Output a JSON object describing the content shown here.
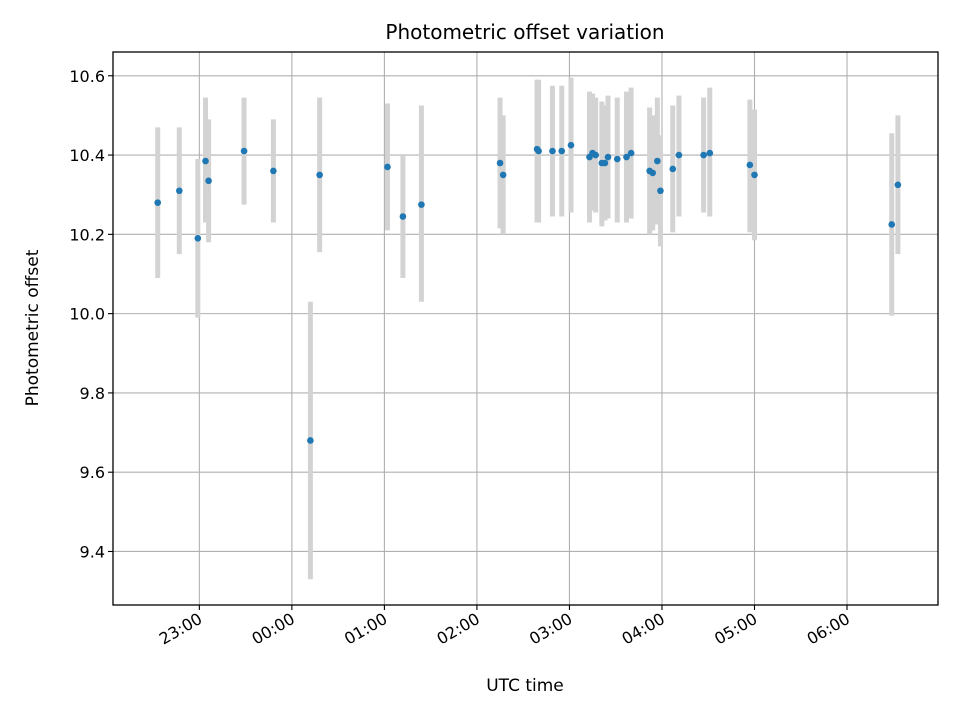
{
  "chart_data": {
    "type": "scatter",
    "title": "Photometric offset variation",
    "xlabel": "UTC time",
    "ylabel": "Photometric offset",
    "grid": true,
    "legend": "none",
    "x_axis_kind": "time",
    "x_range": [
      "22:04",
      "06:59"
    ],
    "ylim": [
      9.265,
      10.66
    ],
    "x_ticks": [
      "23:00",
      "00:00",
      "01:00",
      "02:00",
      "03:00",
      "04:00",
      "05:00",
      "06:00"
    ],
    "y_ticks": [
      9.4,
      9.6,
      9.8,
      10.0,
      10.2,
      10.4,
      10.6
    ],
    "y_tick_labels": [
      "9.4",
      "9.6",
      "9.8",
      "10.0",
      "10.2",
      "10.4",
      "10.6"
    ],
    "point_color": "#1f77b4",
    "errorbar_color": "#d3d3d3",
    "points": [
      {
        "t": "22:33",
        "y": 10.28,
        "lo": 10.09,
        "hi": 10.47
      },
      {
        "t": "22:47",
        "y": 10.31,
        "lo": 10.15,
        "hi": 10.47
      },
      {
        "t": "22:59",
        "y": 10.19,
        "lo": 9.99,
        "hi": 10.39
      },
      {
        "t": "23:04",
        "y": 10.385,
        "lo": 10.23,
        "hi": 10.545
      },
      {
        "t": "23:06",
        "y": 10.335,
        "lo": 10.18,
        "hi": 10.49
      },
      {
        "t": "23:29",
        "y": 10.41,
        "lo": 10.275,
        "hi": 10.545
      },
      {
        "t": "23:48",
        "y": 10.36,
        "lo": 10.23,
        "hi": 10.49
      },
      {
        "t": "00:12",
        "y": 9.68,
        "lo": 9.33,
        "hi": 10.03
      },
      {
        "t": "00:18",
        "y": 10.35,
        "lo": 10.155,
        "hi": 10.545
      },
      {
        "t": "01:02",
        "y": 10.37,
        "lo": 10.21,
        "hi": 10.53
      },
      {
        "t": "01:12",
        "y": 10.245,
        "lo": 10.09,
        "hi": 10.4
      },
      {
        "t": "01:24",
        "y": 10.275,
        "lo": 10.03,
        "hi": 10.525
      },
      {
        "t": "02:15",
        "y": 10.38,
        "lo": 10.215,
        "hi": 10.545
      },
      {
        "t": "02:17",
        "y": 10.35,
        "lo": 10.2,
        "hi": 10.5
      },
      {
        "t": "02:39",
        "y": 10.415,
        "lo": 10.23,
        "hi": 10.59
      },
      {
        "t": "02:40",
        "y": 10.41,
        "lo": 10.23,
        "hi": 10.59
      },
      {
        "t": "02:49",
        "y": 10.41,
        "lo": 10.245,
        "hi": 10.575
      },
      {
        "t": "02:55",
        "y": 10.41,
        "lo": 10.245,
        "hi": 10.575
      },
      {
        "t": "03:01",
        "y": 10.425,
        "lo": 10.255,
        "hi": 10.595
      },
      {
        "t": "03:13",
        "y": 10.395,
        "lo": 10.23,
        "hi": 10.56
      },
      {
        "t": "03:15",
        "y": 10.405,
        "lo": 10.26,
        "hi": 10.555
      },
      {
        "t": "03:17",
        "y": 10.4,
        "lo": 10.255,
        "hi": 10.545
      },
      {
        "t": "03:21",
        "y": 10.38,
        "lo": 10.22,
        "hi": 10.535
      },
      {
        "t": "03:23",
        "y": 10.38,
        "lo": 10.235,
        "hi": 10.525
      },
      {
        "t": "03:25",
        "y": 10.395,
        "lo": 10.24,
        "hi": 10.55
      },
      {
        "t": "03:31",
        "y": 10.39,
        "lo": 10.23,
        "hi": 10.545
      },
      {
        "t": "03:37",
        "y": 10.395,
        "lo": 10.23,
        "hi": 10.56
      },
      {
        "t": "03:40",
        "y": 10.405,
        "lo": 10.24,
        "hi": 10.57
      },
      {
        "t": "03:52",
        "y": 10.36,
        "lo": 10.2,
        "hi": 10.52
      },
      {
        "t": "03:54",
        "y": 10.355,
        "lo": 10.21,
        "hi": 10.5
      },
      {
        "t": "03:57",
        "y": 10.385,
        "lo": 10.225,
        "hi": 10.545
      },
      {
        "t": "03:59",
        "y": 10.31,
        "lo": 10.17,
        "hi": 10.45
      },
      {
        "t": "04:07",
        "y": 10.365,
        "lo": 10.205,
        "hi": 10.525
      },
      {
        "t": "04:11",
        "y": 10.4,
        "lo": 10.245,
        "hi": 10.55
      },
      {
        "t": "04:27",
        "y": 10.4,
        "lo": 10.255,
        "hi": 10.545
      },
      {
        "t": "04:31",
        "y": 10.405,
        "lo": 10.245,
        "hi": 10.57
      },
      {
        "t": "04:57",
        "y": 10.375,
        "lo": 10.205,
        "hi": 10.54
      },
      {
        "t": "05:00",
        "y": 10.35,
        "lo": 10.185,
        "hi": 10.515
      },
      {
        "t": "06:29",
        "y": 10.225,
        "lo": 9.995,
        "hi": 10.455
      },
      {
        "t": "06:33",
        "y": 10.325,
        "lo": 10.15,
        "hi": 10.5
      }
    ]
  }
}
